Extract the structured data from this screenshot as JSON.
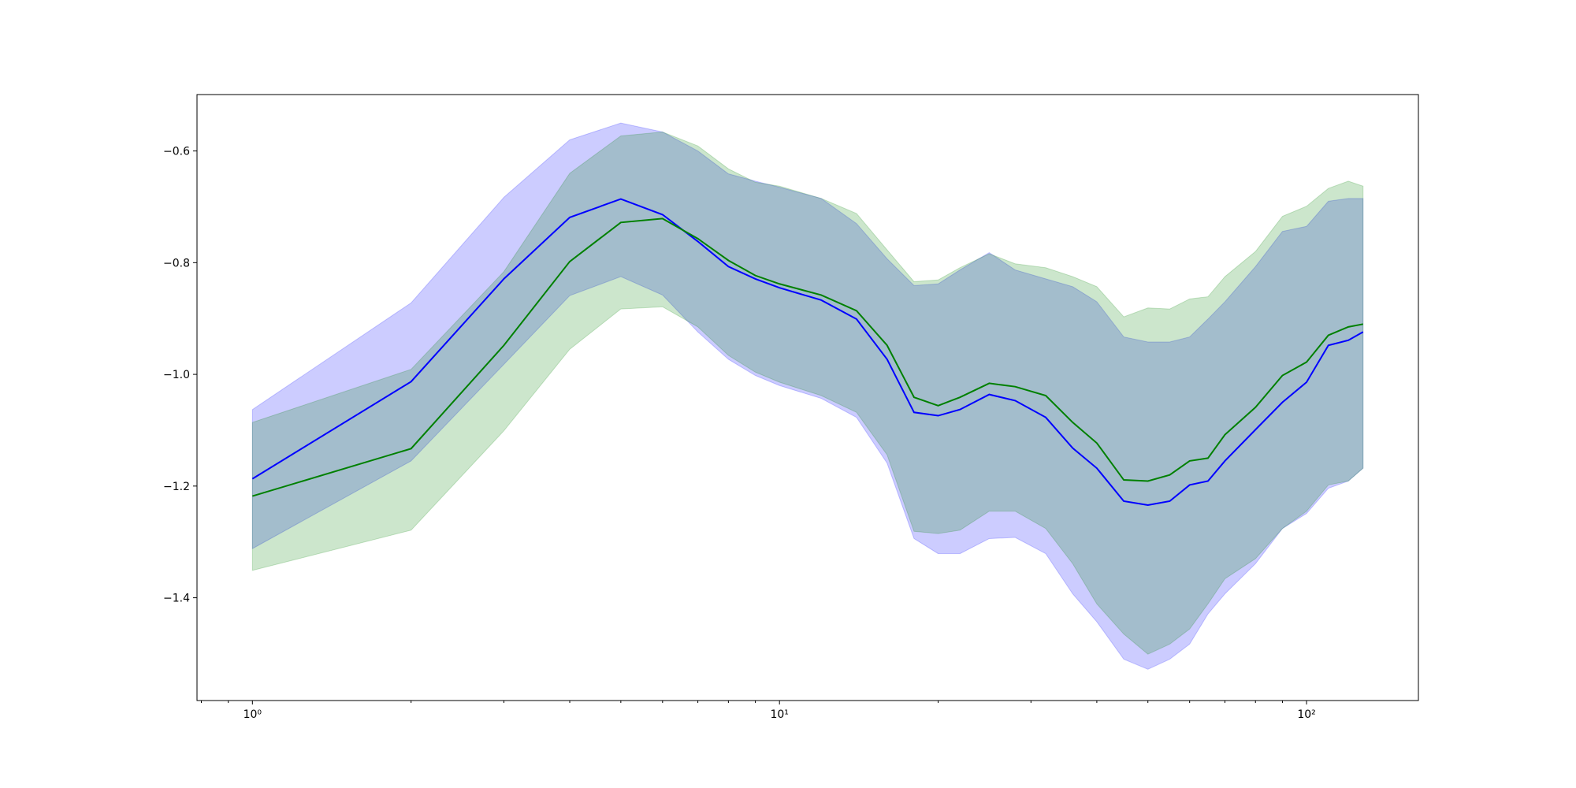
{
  "chart_data": {
    "type": "line",
    "xscale": "log",
    "band_alpha": 0.2,
    "x": [
      1,
      2,
      3,
      4,
      5,
      6,
      7,
      8,
      9,
      10,
      12,
      14,
      16,
      18,
      20,
      22,
      25,
      28,
      32,
      36,
      40,
      45,
      50,
      55,
      60,
      65,
      70,
      80,
      90,
      100,
      110,
      120,
      128
    ],
    "series": [
      {
        "color": "#0000ff",
        "values": [
          -1.187,
          -1.013,
          -0.829,
          -0.719,
          -0.686,
          -0.714,
          -0.762,
          -0.807,
          -0.829,
          -0.845,
          -0.867,
          -0.901,
          -0.973,
          -1.068,
          -1.074,
          -1.063,
          -1.036,
          -1.047,
          -1.077,
          -1.132,
          -1.168,
          -1.227,
          -1.234,
          -1.227,
          -1.198,
          -1.191,
          -1.155,
          -1.099,
          -1.05,
          -1.014,
          -0.948,
          -0.939,
          -0.924
        ],
        "upper": [
          -1.063,
          -0.872,
          -0.683,
          -0.58,
          -0.55,
          -0.566,
          -0.6,
          -0.641,
          -0.654,
          -0.665,
          -0.685,
          -0.73,
          -0.793,
          -0.841,
          -0.838,
          -0.813,
          -0.782,
          -0.813,
          -0.829,
          -0.843,
          -0.87,
          -0.933,
          -0.942,
          -0.942,
          -0.933,
          -0.901,
          -0.87,
          -0.807,
          -0.744,
          -0.735,
          -0.69,
          -0.685,
          -0.685
        ],
        "lower": [
          -1.312,
          -1.155,
          -0.982,
          -0.859,
          -0.825,
          -0.858,
          -0.924,
          -0.973,
          -1.002,
          -1.02,
          -1.043,
          -1.077,
          -1.159,
          -1.294,
          -1.321,
          -1.321,
          -1.294,
          -1.292,
          -1.321,
          -1.393,
          -1.443,
          -1.51,
          -1.528,
          -1.51,
          -1.483,
          -1.429,
          -1.393,
          -1.339,
          -1.276,
          -1.249,
          -1.204,
          -1.191,
          -1.168
        ]
      },
      {
        "color": "#008000",
        "values": [
          -1.218,
          -1.133,
          -0.948,
          -0.798,
          -0.728,
          -0.721,
          -0.757,
          -0.796,
          -0.823,
          -0.838,
          -0.858,
          -0.886,
          -0.948,
          -1.041,
          -1.056,
          -1.041,
          -1.016,
          -1.022,
          -1.038,
          -1.086,
          -1.123,
          -1.189,
          -1.191,
          -1.18,
          -1.155,
          -1.15,
          -1.108,
          -1.059,
          -1.002,
          -0.978,
          -0.93,
          -0.915,
          -0.91
        ],
        "upper": [
          -1.086,
          -0.991,
          -0.816,
          -0.64,
          -0.573,
          -0.566,
          -0.591,
          -0.632,
          -0.656,
          -0.663,
          -0.685,
          -0.712,
          -0.777,
          -0.834,
          -0.831,
          -0.809,
          -0.784,
          -0.802,
          -0.809,
          -0.825,
          -0.843,
          -0.897,
          -0.881,
          -0.883,
          -0.865,
          -0.861,
          -0.825,
          -0.78,
          -0.717,
          -0.699,
          -0.667,
          -0.654,
          -0.663
        ],
        "lower": [
          -1.351,
          -1.279,
          -1.101,
          -0.955,
          -0.883,
          -0.879,
          -0.915,
          -0.966,
          -0.996,
          -1.014,
          -1.038,
          -1.068,
          -1.144,
          -1.281,
          -1.285,
          -1.279,
          -1.245,
          -1.245,
          -1.276,
          -1.339,
          -1.411,
          -1.465,
          -1.501,
          -1.483,
          -1.456,
          -1.411,
          -1.366,
          -1.33,
          -1.276,
          -1.245,
          -1.198,
          -1.191,
          -1.168
        ]
      }
    ],
    "xlim": [
      0.785,
      163
    ],
    "ylim": [
      -1.584,
      -0.499
    ],
    "xticks": [
      {
        "value": 1,
        "label": "10⁰"
      },
      {
        "value": 10,
        "label": "10¹"
      },
      {
        "value": 100,
        "label": "10²"
      }
    ],
    "xminor_ticks": [
      0.8,
      0.9,
      2,
      3,
      4,
      5,
      6,
      7,
      8,
      9,
      20,
      30,
      40,
      50,
      60,
      70,
      80,
      90
    ],
    "yticks": [
      {
        "value": -1.4,
        "label": "−1.4"
      },
      {
        "value": -1.2,
        "label": "−1.2"
      },
      {
        "value": -1.0,
        "label": "−1.0"
      },
      {
        "value": -0.8,
        "label": "−0.8"
      },
      {
        "value": -0.6,
        "label": "−0.6"
      }
    ]
  }
}
